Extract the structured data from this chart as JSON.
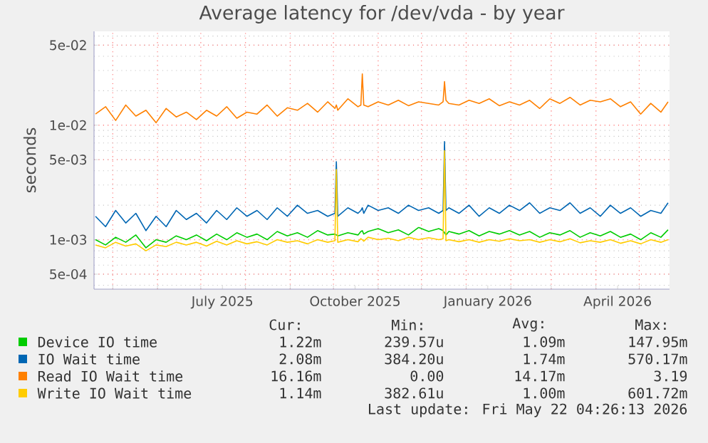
{
  "chart_data": {
    "type": "line",
    "title": "Average latency for /dev/vda - by year",
    "ylabel": "seconds",
    "log": "y",
    "grid": true,
    "legend": "bottom",
    "xlim": [
      "2025-04-18",
      "2026-05-22"
    ],
    "xticks": [
      {
        "value": "2025-05-01",
        "label": null
      },
      {
        "value": "2025-06-01",
        "label": null
      },
      {
        "value": "2025-07-01",
        "label": null
      },
      {
        "value": "2025-08-01",
        "label": null
      },
      {
        "value": "2025-09-01",
        "label": null
      },
      {
        "value": "2025-10-01",
        "label": null
      },
      {
        "value": "2025-11-01",
        "label": null
      },
      {
        "value": "2025-12-01",
        "label": null
      },
      {
        "value": "2026-01-01",
        "label": null
      },
      {
        "value": "2026-02-01",
        "label": null
      },
      {
        "value": "2026-03-01",
        "label": null
      },
      {
        "value": "2026-04-01",
        "label": null
      },
      {
        "value": "2026-05-01",
        "label": null
      },
      {
        "value": "2025-07-16",
        "label": "July 2025"
      },
      {
        "value": "2025-10-16",
        "label": "October 2025"
      },
      {
        "value": "2026-01-16",
        "label": "January 2026"
      },
      {
        "value": "2026-04-16",
        "label": "April 2026"
      }
    ],
    "ylim": [
      0.00037,
      0.066
    ],
    "yticks": [
      {
        "value": 0.0005,
        "label": "5e-04"
      },
      {
        "value": 0.001,
        "label": "1e-03"
      },
      {
        "value": 0.005,
        "label": "5e-03"
      },
      {
        "value": 0.01,
        "label": "1e-02"
      },
      {
        "value": 0.05,
        "label": "5e-02"
      }
    ],
    "x": [
      "2025-04-19",
      "2025-04-26",
      "2025-05-03",
      "2025-05-10",
      "2025-05-17",
      "2025-05-24",
      "2025-05-31",
      "2025-06-07",
      "2025-06-14",
      "2025-06-21",
      "2025-06-28",
      "2025-07-05",
      "2025-07-12",
      "2025-07-19",
      "2025-07-26",
      "2025-08-02",
      "2025-08-09",
      "2025-08-16",
      "2025-08-23",
      "2025-08-30",
      "2025-09-06",
      "2025-09-13",
      "2025-09-20",
      "2025-09-27",
      "2025-10-02",
      "2025-10-03",
      "2025-10-04",
      "2025-10-11",
      "2025-10-18",
      "2025-10-20",
      "2025-10-21",
      "2025-10-22",
      "2025-10-25",
      "2025-11-01",
      "2025-11-08",
      "2025-11-15",
      "2025-11-22",
      "2025-11-29",
      "2025-12-06",
      "2025-12-13",
      "2025-12-16",
      "2025-12-17",
      "2025-12-18",
      "2025-12-20",
      "2025-12-27",
      "2026-01-03",
      "2026-01-10",
      "2026-01-17",
      "2026-01-24",
      "2026-01-31",
      "2026-02-07",
      "2026-02-14",
      "2026-02-21",
      "2026-02-28",
      "2026-03-07",
      "2026-03-14",
      "2026-03-21",
      "2026-03-28",
      "2026-04-04",
      "2026-04-11",
      "2026-04-18",
      "2026-04-25",
      "2026-05-02",
      "2026-05-09",
      "2026-05-16",
      "2026-05-21"
    ],
    "series": [
      {
        "name": "Device IO time",
        "color": "#00cc00",
        "values": [
          0.001,
          0.0009,
          0.00105,
          0.00095,
          0.0011,
          0.00085,
          0.001,
          0.00095,
          0.00108,
          0.001,
          0.0011,
          0.00098,
          0.00112,
          0.001,
          0.00115,
          0.00105,
          0.00112,
          0.001,
          0.00118,
          0.00108,
          0.00115,
          0.00105,
          0.0012,
          0.0011,
          0.00112,
          null,
          0.00108,
          0.00115,
          0.0011,
          0.00118,
          0.0012,
          0.00112,
          0.00118,
          0.00125,
          0.00115,
          0.00122,
          0.0011,
          0.00128,
          0.00118,
          0.00125,
          0.0012,
          null,
          0.0011,
          0.00118,
          0.00112,
          0.0012,
          0.00108,
          0.00118,
          0.00112,
          0.0012,
          0.0011,
          0.00118,
          0.00105,
          0.00115,
          0.0011,
          0.0012,
          0.00105,
          0.00115,
          0.00108,
          0.00118,
          0.00105,
          0.00112,
          0.001,
          0.00115,
          0.00105,
          0.00122
        ]
      },
      {
        "name": "IO Wait time",
        "color": "#0066b3",
        "values": [
          0.0016,
          0.0013,
          0.0018,
          0.0014,
          0.0017,
          0.0012,
          0.0016,
          0.0013,
          0.0018,
          0.0015,
          0.0017,
          0.0014,
          0.0018,
          0.0015,
          0.0019,
          0.0016,
          0.0018,
          0.0015,
          0.0019,
          0.0016,
          0.002,
          0.0017,
          0.0018,
          0.0016,
          0.0017,
          0.0048,
          0.0016,
          0.0019,
          0.0017,
          0.0018,
          0.0019,
          0.0017,
          0.002,
          0.0018,
          0.0019,
          0.0017,
          0.002,
          0.0018,
          0.0019,
          0.0017,
          0.0018,
          0.0072,
          0.0018,
          0.0019,
          0.0017,
          0.002,
          0.0016,
          0.0019,
          0.0017,
          0.002,
          0.0018,
          0.0021,
          0.0017,
          0.0019,
          0.0018,
          0.0021,
          0.0017,
          0.0019,
          0.0016,
          0.002,
          0.0017,
          0.0019,
          0.0016,
          0.0018,
          0.0017,
          0.0021
        ]
      },
      {
        "name": "Read IO Wait time",
        "color": "#ff8000",
        "values": [
          0.0125,
          0.0145,
          0.011,
          0.015,
          0.012,
          0.0135,
          0.0105,
          0.014,
          0.0118,
          0.013,
          0.0112,
          0.0135,
          0.012,
          0.0145,
          0.0115,
          0.013,
          0.0125,
          0.015,
          0.012,
          0.0142,
          0.0135,
          0.0155,
          0.013,
          0.016,
          0.014,
          0.015,
          0.0135,
          0.017,
          0.0145,
          0.015,
          0.028,
          0.015,
          0.0145,
          0.016,
          0.015,
          0.0165,
          0.0148,
          0.016,
          0.0155,
          0.015,
          0.016,
          0.024,
          0.0165,
          0.0155,
          0.015,
          0.0165,
          0.0155,
          0.017,
          0.0148,
          0.016,
          0.015,
          0.0165,
          0.014,
          0.017,
          0.0155,
          0.0175,
          0.015,
          0.0165,
          0.016,
          0.017,
          0.0145,
          0.016,
          0.0125,
          0.0155,
          0.013,
          0.016
        ]
      },
      {
        "name": "Write IO Wait time",
        "color": "#ffcc00",
        "values": [
          0.0009,
          0.00085,
          0.00095,
          0.00088,
          0.00092,
          0.0008,
          0.0009,
          0.00087,
          0.00095,
          0.0009,
          0.00095,
          0.00088,
          0.00097,
          0.0009,
          0.00098,
          0.00092,
          0.00096,
          0.0009,
          0.001,
          0.00095,
          0.00098,
          0.00092,
          0.001,
          0.00095,
          0.00098,
          0.0041,
          0.00095,
          0.001,
          0.00096,
          0.00102,
          0.001,
          0.00097,
          0.00105,
          0.001,
          0.00103,
          0.00098,
          0.00105,
          0.001,
          0.00104,
          0.001,
          0.00102,
          0.006,
          0.00098,
          0.001,
          0.00096,
          0.001,
          0.00095,
          0.001,
          0.00097,
          0.00102,
          0.00098,
          0.001,
          0.00095,
          0.001,
          0.00096,
          0.00102,
          0.00094,
          0.00098,
          0.00095,
          0.001,
          0.00093,
          0.00098,
          0.00092,
          0.001,
          0.00095,
          0.001
        ]
      }
    ],
    "annotations": [
      "Cur:",
      "Min:",
      "Avg:",
      "Max:",
      "1.22m",
      "239.57u",
      "1.09m",
      "147.95m",
      "2.08m",
      "384.20u",
      "1.74m",
      "570.17m",
      "16.16m",
      "0.00",
      "14.17m",
      "3.19",
      "1.14m",
      "382.61u",
      "1.00m",
      "601.72m",
      "Last update: Fri May 22 04:26:13 2026"
    ]
  }
}
